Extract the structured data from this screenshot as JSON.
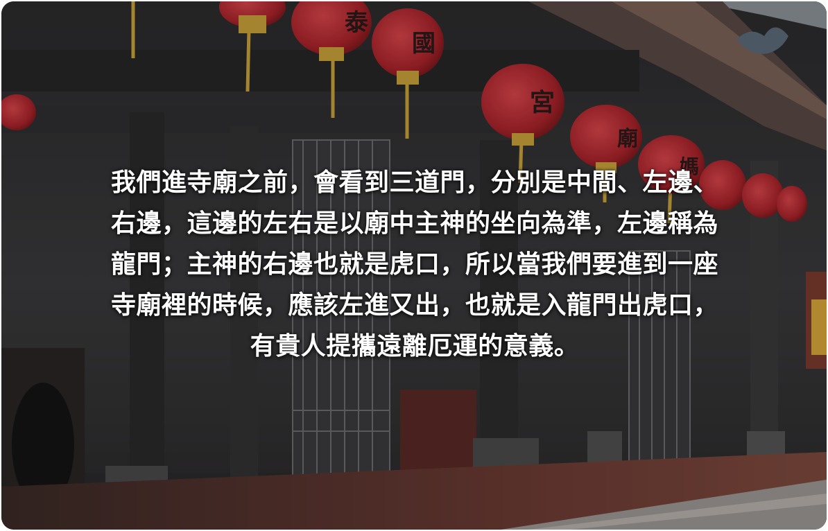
{
  "caption": {
    "lines": [
      "我們進寺廟之前，會看到三道門，分別是中間、左邊、",
      "右邊，這邊的左右是以廟中主神的坐向為準，左邊稱為",
      "龍門；主神的右邊也就是虎口，所以當我們要進到一座",
      "寺廟裡的時候，應該左進又出，也就是入龍門出虎口，",
      "有貴人提攜遠離厄運的意義。"
    ]
  },
  "lanterns": [
    {
      "label": "國"
    },
    {
      "label": "宮"
    },
    {
      "label": "廟"
    },
    {
      "label": "媽"
    },
    {
      "label": "泰"
    }
  ],
  "colors": {
    "lantern_red": "#b3262c",
    "lantern_tassel": "#c9a23a",
    "sky": "#8d9399",
    "stone_dark": "#3a3a3c",
    "floor_brick": "#6e3a32",
    "caption_text": "#ffffff"
  }
}
